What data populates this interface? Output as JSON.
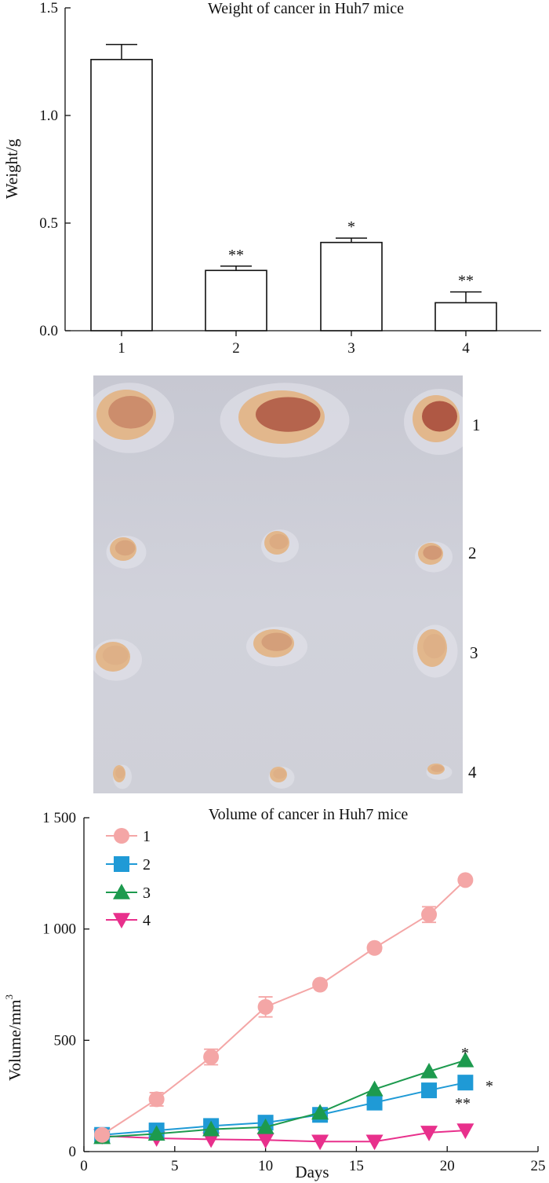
{
  "chart_data": [
    {
      "type": "bar",
      "title": "Weight of cancer in Huh7 mice",
      "ylabel": "Weight/g",
      "xlabel": "",
      "categories": [
        "1",
        "2",
        "3",
        "4"
      ],
      "values": [
        1.26,
        0.28,
        0.41,
        0.13
      ],
      "errors": [
        0.07,
        0.02,
        0.02,
        0.05
      ],
      "significance": [
        "",
        "**",
        "*",
        "**"
      ],
      "ylim": [
        0,
        1.5
      ],
      "yticks": [
        "0.0",
        "0.5",
        "1.0",
        "1.5"
      ],
      "grid": false,
      "bar_color": "#ffffff",
      "edge_color": "#111111"
    },
    {
      "type": "line",
      "title": "Volume of cancer in Huh7 mice",
      "xlabel": "Days",
      "ylabel": "Volume/mm",
      "ylabel_superscript": "3",
      "xlim": [
        0,
        25
      ],
      "ylim": [
        0,
        1500
      ],
      "xticks": [
        "0",
        "5",
        "10",
        "15",
        "20",
        "25"
      ],
      "yticks": [
        "0",
        "500",
        "1 000",
        "1 500"
      ],
      "grid": false,
      "legend_position": "top-left",
      "series": [
        {
          "name": "1",
          "color": "#f4a6a6",
          "marker": "circle",
          "x": [
            1,
            4,
            7,
            10,
            13,
            16,
            19,
            21
          ],
          "y": [
            75,
            235,
            425,
            650,
            750,
            915,
            1065,
            1220
          ],
          "err": [
            15,
            30,
            35,
            45,
            12,
            15,
            35,
            10
          ]
        },
        {
          "name": "2",
          "color": "#1f9ad6",
          "marker": "square",
          "x": [
            1,
            4,
            7,
            10,
            13,
            16,
            19,
            21
          ],
          "y": [
            75,
            95,
            115,
            130,
            165,
            220,
            275,
            310
          ],
          "err": [
            0,
            0,
            0,
            0,
            0,
            0,
            0,
            0
          ]
        },
        {
          "name": "3",
          "color": "#1d9a4e",
          "marker": "triangle-up",
          "x": [
            1,
            4,
            7,
            10,
            13,
            16,
            19,
            21
          ],
          "y": [
            65,
            80,
            100,
            110,
            175,
            280,
            360,
            410
          ],
          "err": [
            0,
            0,
            0,
            0,
            0,
            0,
            0,
            0
          ]
        },
        {
          "name": "4",
          "color": "#e8308c",
          "marker": "triangle-down",
          "x": [
            1,
            4,
            7,
            10,
            13,
            16,
            19,
            21
          ],
          "y": [
            70,
            60,
            55,
            52,
            45,
            45,
            85,
            95
          ],
          "err": [
            0,
            0,
            0,
            0,
            0,
            0,
            0,
            0
          ]
        }
      ],
      "annotations": [
        "*",
        "*",
        "**"
      ]
    }
  ],
  "photo": {
    "row_labels": [
      "1",
      "2",
      "3",
      "4"
    ],
    "background": "#cbccd5",
    "tumor_color": "#e2b78c",
    "tumor_dark_color": "#a24032"
  }
}
